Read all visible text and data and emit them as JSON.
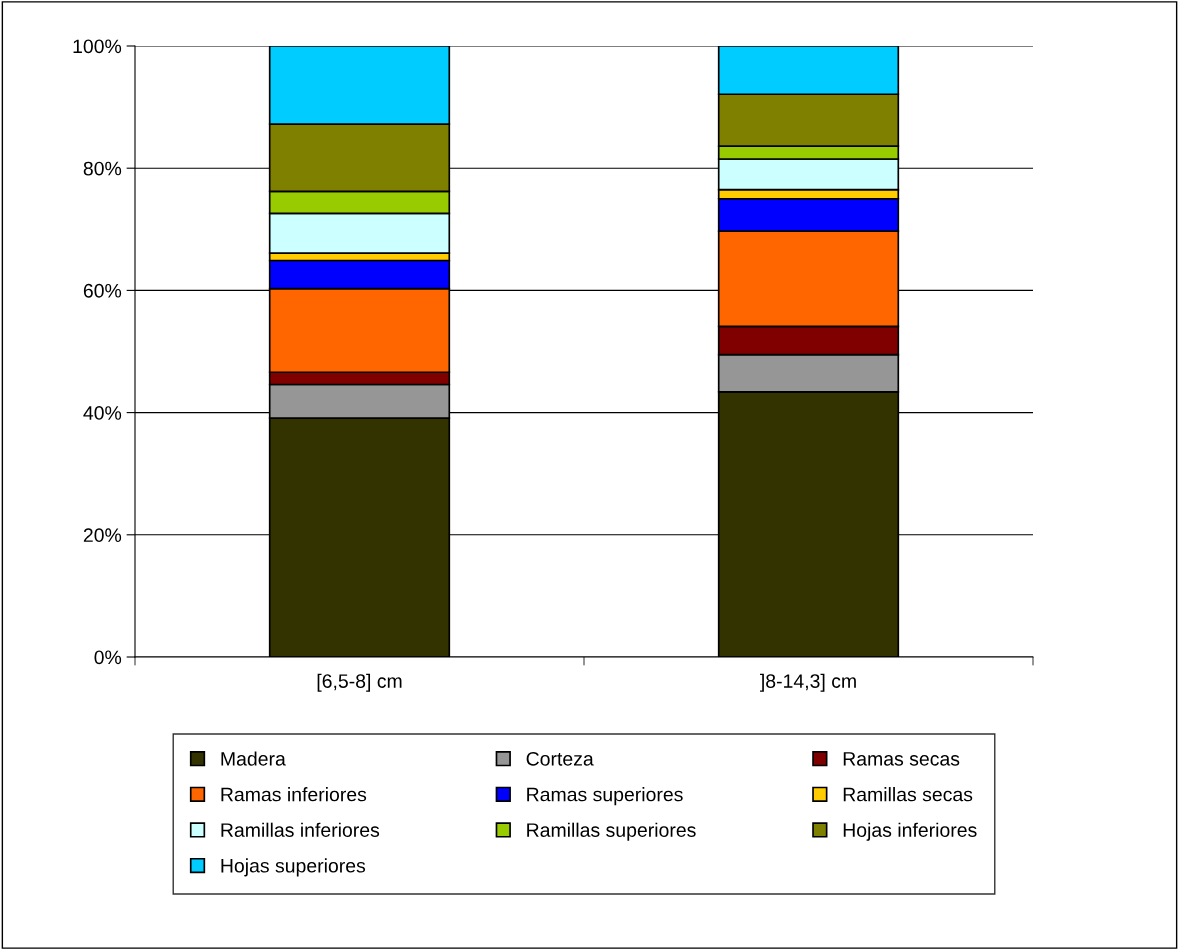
{
  "chart_data": {
    "type": "bar",
    "stacked": true,
    "categories": [
      "[6,5-8] cm",
      "]8-14,3] cm"
    ],
    "series": [
      {
        "name": "Madera",
        "color": "#333300",
        "values": [
          39.1,
          43.4
        ]
      },
      {
        "name": "Corteza",
        "color": "#969696",
        "values": [
          5.5,
          6.1
        ]
      },
      {
        "name": "Ramas secas",
        "color": "#800000",
        "values": [
          2.0,
          4.6
        ]
      },
      {
        "name": "Ramas inferiores",
        "color": "#ff6600",
        "values": [
          13.7,
          15.6
        ]
      },
      {
        "name": "Ramas superiores",
        "color": "#0000ff",
        "values": [
          4.6,
          5.3
        ]
      },
      {
        "name": "Ramillas secas",
        "color": "#ffcc00",
        "values": [
          1.2,
          1.5
        ]
      },
      {
        "name": "Ramillas inferiores",
        "color": "#ccffff",
        "values": [
          6.5,
          5.0
        ]
      },
      {
        "name": "Ramillas superiores",
        "color": "#99cc00",
        "values": [
          3.6,
          2.1
        ]
      },
      {
        "name": "Hojas inferiores",
        "color": "#808000",
        "values": [
          11.0,
          8.5
        ]
      },
      {
        "name": "Hojas superiores",
        "color": "#00ccff",
        "values": [
          12.8,
          7.9
        ]
      }
    ],
    "ylim": [
      0,
      100
    ],
    "yticks": [
      {
        "value": 0,
        "label": "0%"
      },
      {
        "value": 20,
        "label": "20%"
      },
      {
        "value": 40,
        "label": "40%"
      },
      {
        "value": 60,
        "label": "60%"
      },
      {
        "value": 80,
        "label": "80%"
      },
      {
        "value": 100,
        "label": "100%"
      }
    ],
    "grid": "y",
    "legend": "bottom"
  }
}
